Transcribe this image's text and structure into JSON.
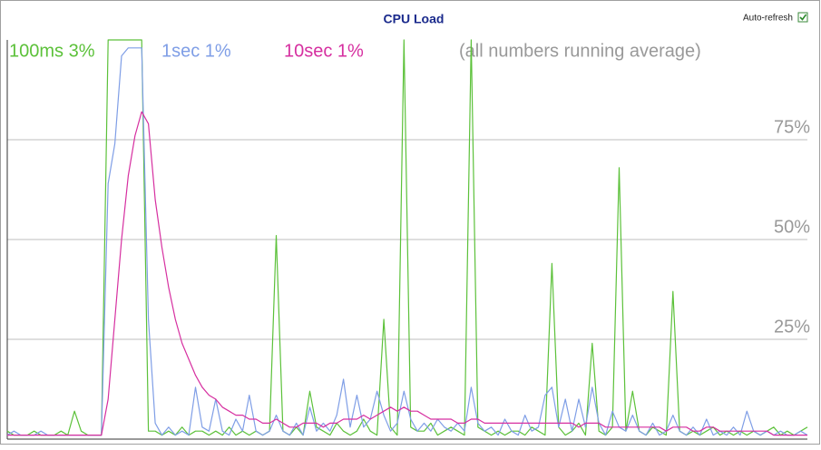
{
  "chart_data": {
    "type": "line",
    "title": "CPU Load",
    "note": "(all numbers running average)",
    "ylim": [
      0,
      100
    ],
    "yticks": [
      {
        "value": 25,
        "label": "25%"
      },
      {
        "value": 50,
        "label": "50%"
      },
      {
        "value": 75,
        "label": "75%"
      }
    ],
    "grid": true,
    "series": [
      {
        "name": "100ms 3%",
        "color": "#5cc13a",
        "values": [
          2,
          1,
          1,
          1,
          2,
          1,
          1,
          1,
          2,
          1,
          7,
          2,
          1,
          1,
          1,
          100,
          100,
          100,
          100,
          100,
          100,
          2,
          2,
          1,
          2,
          1,
          3,
          1,
          2,
          2,
          1,
          2,
          1,
          3,
          1,
          2,
          1,
          2,
          1,
          2,
          51,
          2,
          1,
          3,
          1,
          12,
          3,
          2,
          1,
          4,
          2,
          1,
          2,
          5,
          2,
          1,
          30,
          3,
          1,
          100,
          3,
          2,
          2,
          4,
          1,
          2,
          3,
          2,
          1,
          100,
          3,
          2,
          1,
          2,
          1,
          2,
          2,
          1,
          3,
          2,
          1,
          44,
          3,
          1,
          2,
          4,
          1,
          24,
          2,
          1,
          3,
          68,
          2,
          12,
          2,
          1,
          3,
          2,
          1,
          37,
          2,
          1,
          2,
          1,
          2,
          3,
          1,
          2,
          1,
          2,
          1,
          2,
          1,
          2,
          3,
          1,
          2,
          1,
          2,
          3
        ]
      },
      {
        "name": "1sec 1%",
        "color": "#7f9ee6",
        "values": [
          1,
          2,
          1,
          1,
          1,
          2,
          1,
          1,
          1,
          1,
          1,
          1,
          1,
          1,
          1,
          64,
          74,
          96,
          98,
          98,
          98,
          30,
          4,
          1,
          3,
          1,
          2,
          1,
          13,
          3,
          2,
          10,
          2,
          1,
          5,
          2,
          11,
          2,
          1,
          2,
          6,
          2,
          1,
          4,
          1,
          8,
          2,
          4,
          2,
          6,
          15,
          3,
          11,
          3,
          5,
          12,
          6,
          2,
          4,
          12,
          5,
          2,
          4,
          2,
          5,
          3,
          2,
          4,
          2,
          13,
          4,
          2,
          3,
          1,
          5,
          2,
          1,
          6,
          2,
          3,
          11,
          13,
          3,
          10,
          2,
          10,
          3,
          13,
          4,
          1,
          7,
          3,
          2,
          6,
          2,
          1,
          4,
          1,
          2,
          6,
          2,
          1,
          3,
          1,
          5,
          1,
          2,
          1,
          3,
          1,
          7,
          2,
          1,
          2,
          1,
          2,
          1,
          1,
          2,
          1
        ]
      },
      {
        "name": "10sec 1%",
        "color": "#d62fa0",
        "values": [
          1,
          1,
          1,
          1,
          1,
          1,
          1,
          1,
          1,
          1,
          1,
          1,
          1,
          1,
          1,
          10,
          30,
          50,
          66,
          76,
          82,
          79,
          60,
          48,
          38,
          30,
          24,
          20,
          16,
          13,
          11,
          10,
          8,
          7,
          6,
          6,
          5,
          5,
          4,
          4,
          5,
          4,
          3,
          3,
          4,
          4,
          4,
          3,
          4,
          4,
          5,
          5,
          5,
          6,
          5,
          6,
          7,
          8,
          7,
          8,
          7,
          7,
          6,
          5,
          5,
          5,
          5,
          4,
          4,
          5,
          5,
          4,
          4,
          4,
          4,
          4,
          4,
          4,
          4,
          4,
          4,
          4,
          4,
          4,
          4,
          3,
          4,
          4,
          4,
          3,
          3,
          3,
          3,
          3,
          3,
          3,
          3,
          3,
          2,
          3,
          3,
          3,
          2,
          2,
          3,
          3,
          2,
          2,
          2,
          2,
          2,
          2,
          2,
          2,
          1,
          1,
          1,
          1,
          1,
          1
        ]
      }
    ]
  },
  "ui": {
    "auto_refresh": "Auto-refresh"
  }
}
